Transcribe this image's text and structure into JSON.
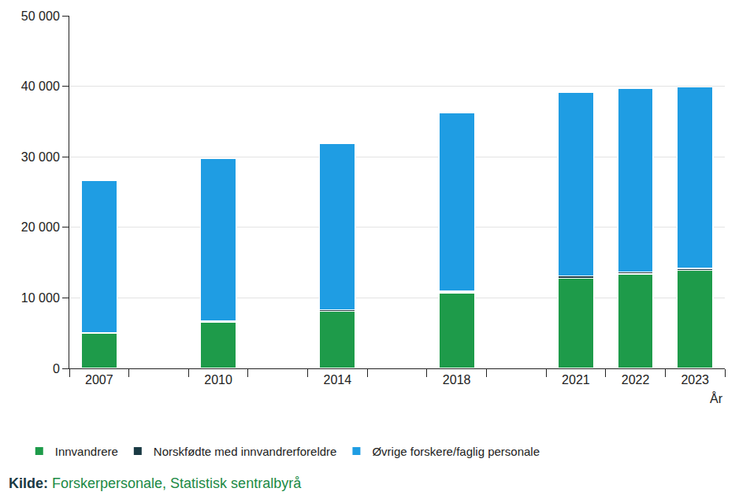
{
  "chart_data": {
    "type": "bar",
    "stacked": true,
    "grid": true,
    "legend": "bottom",
    "x_label": "År",
    "source_label": "Kilde:",
    "source": "Forskerpersonale, Statistisk sentralbyrå",
    "categories": [
      "2007",
      null,
      "2010",
      null,
      "2014",
      null,
      "2018",
      null,
      "2021",
      "2022",
      "2023"
    ],
    "series": [
      {
        "name": "Innvandrere",
        "color": "#1e9b4a",
        "values": [
          5000,
          null,
          6600,
          null,
          8100,
          null,
          10700,
          null,
          12800,
          13400,
          13900
        ]
      },
      {
        "name": "Norskfødte med innvandrerforeldre",
        "color": "#1a3a44",
        "values": [
          100,
          null,
          150,
          null,
          200,
          null,
          250,
          null,
          300,
          300,
          300
        ]
      },
      {
        "name": "Øvrige forskere/faglig personale",
        "color": "#1f9de3",
        "values": [
          21600,
          null,
          23050,
          null,
          23600,
          null,
          25350,
          null,
          26100,
          26000,
          25700
        ]
      }
    ],
    "ylim": [
      0,
      50000
    ],
    "yticks": [
      0,
      {
        "value": 10000,
        "label": "10 000"
      },
      {
        "value": 20000,
        "label": "20 000"
      },
      {
        "value": 30000,
        "label": "30 000"
      },
      {
        "value": 40000,
        "label": "40 000"
      },
      {
        "value": 50000,
        "label": "50 000"
      }
    ]
  }
}
